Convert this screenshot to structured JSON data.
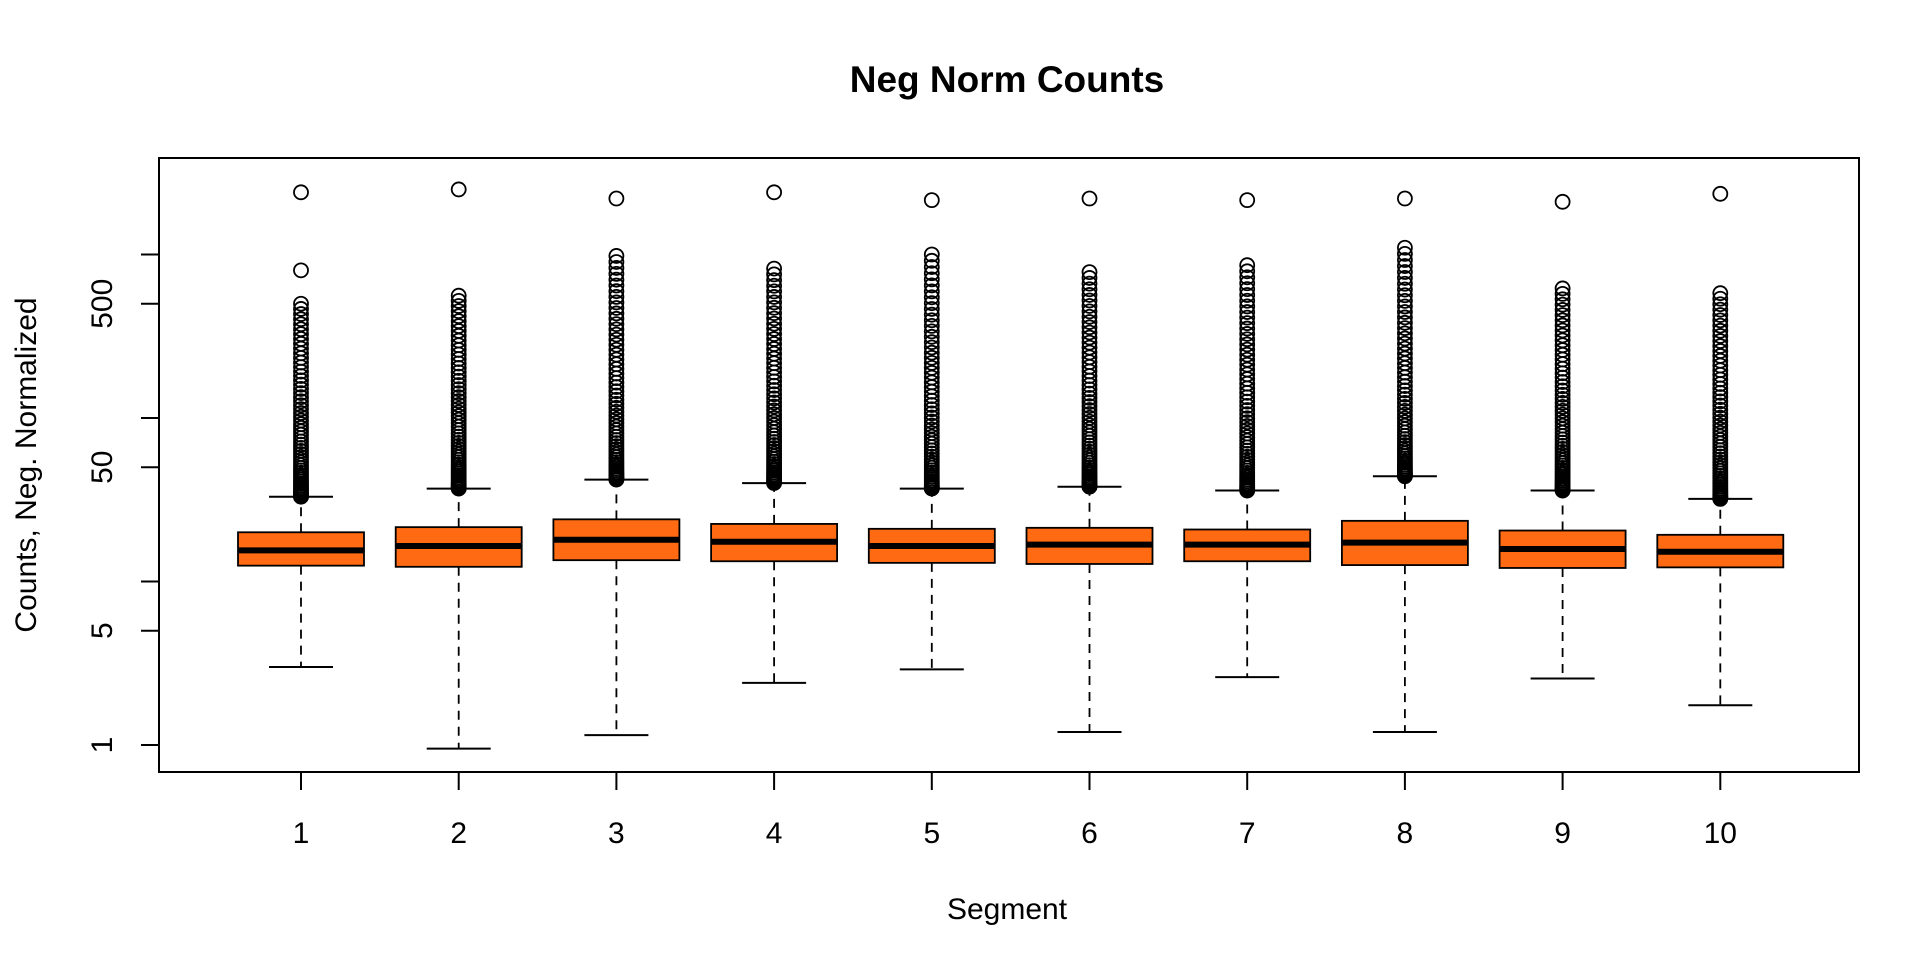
{
  "chart_data": {
    "type": "box",
    "title": "Neg Norm Counts",
    "xlabel": "Segment",
    "ylabel": "Counts, Neg. Normalized",
    "y_scale": "log",
    "ylim": [
      0.85,
      4000
    ],
    "y_ticks": [
      1,
      5,
      50,
      500
    ],
    "y_ticks_unlabeled": [
      10,
      100,
      1000
    ],
    "box_color": "#FF6A13",
    "categories": [
      "1",
      "2",
      "3",
      "4",
      "5",
      "6",
      "7",
      "8",
      "9",
      "10"
    ],
    "boxes": [
      {
        "segment": "1",
        "whisker_low": 3.0,
        "q1": 12.5,
        "median": 15.5,
        "q3": 20.0,
        "whisker_high": 33,
        "outlier_range": [
          33,
          500
        ],
        "outliers_top": [
          800,
          2400
        ]
      },
      {
        "segment": "2",
        "whisker_low": 0.95,
        "q1": 12.3,
        "median": 16.5,
        "q3": 21.5,
        "whisker_high": 37,
        "outlier_range": [
          37,
          560
        ],
        "outliers_top": [
          2500
        ]
      },
      {
        "segment": "3",
        "whisker_low": 1.15,
        "q1": 13.5,
        "median": 18.0,
        "q3": 24.0,
        "whisker_high": 42,
        "outlier_range": [
          42,
          980
        ],
        "outliers_top": [
          2200
        ]
      },
      {
        "segment": "4",
        "whisker_low": 2.4,
        "q1": 13.3,
        "median": 17.5,
        "q3": 22.5,
        "whisker_high": 40,
        "outlier_range": [
          40,
          820
        ],
        "outliers_top": [
          2400
        ]
      },
      {
        "segment": "5",
        "whisker_low": 2.9,
        "q1": 13.0,
        "median": 16.5,
        "q3": 21.0,
        "whisker_high": 37,
        "outlier_range": [
          37,
          1000
        ],
        "outliers_top": [
          2150
        ]
      },
      {
        "segment": "6",
        "whisker_low": 1.2,
        "q1": 12.8,
        "median": 16.8,
        "q3": 21.3,
        "whisker_high": 38,
        "outlier_range": [
          38,
          780
        ],
        "outliers_top": [
          2200
        ]
      },
      {
        "segment": "7",
        "whisker_low": 2.6,
        "q1": 13.3,
        "median": 16.8,
        "q3": 20.8,
        "whisker_high": 36,
        "outlier_range": [
          36,
          860
        ],
        "outliers_top": [
          2150
        ]
      },
      {
        "segment": "8",
        "whisker_low": 1.2,
        "q1": 12.6,
        "median": 17.3,
        "q3": 23.5,
        "whisker_high": 44,
        "outlier_range": [
          44,
          1100
        ],
        "outliers_top": [
          2200
        ]
      },
      {
        "segment": "9",
        "whisker_low": 2.55,
        "q1": 12.1,
        "median": 15.8,
        "q3": 20.5,
        "whisker_high": 36,
        "outlier_range": [
          36,
          620
        ],
        "outliers_top": [
          2100
        ]
      },
      {
        "segment": "10",
        "whisker_low": 1.75,
        "q1": 12.2,
        "median": 15.2,
        "q3": 19.3,
        "whisker_high": 32,
        "outlier_range": [
          32,
          580
        ],
        "outliers_top": [
          2350
        ]
      }
    ]
  }
}
